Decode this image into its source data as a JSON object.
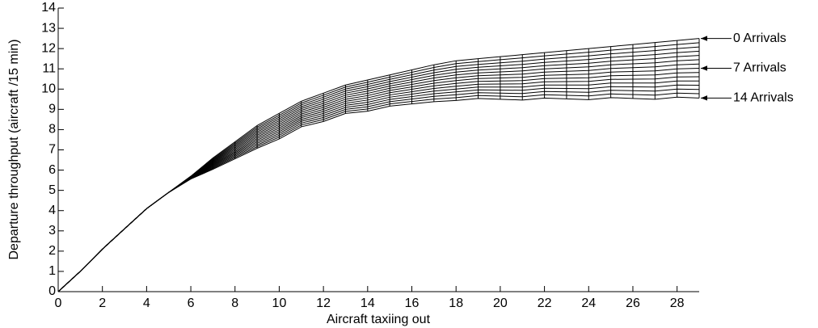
{
  "chart_data": {
    "type": "line",
    "xlabel": "Aircraft taxiing out",
    "ylabel": "Departure throughput (aircraft /15 min)",
    "color": "#000000",
    "x": [
      0,
      1,
      2,
      3,
      4,
      5,
      6,
      7,
      8,
      9,
      10,
      11,
      12,
      13,
      14,
      15,
      16,
      17,
      18,
      19,
      20,
      21,
      22,
      23,
      24,
      25,
      26,
      27,
      28,
      29
    ],
    "series": [
      {
        "name": "0 Arrivals",
        "values": [
          0,
          1,
          2.1,
          3.1,
          4.1,
          4.9,
          5.7,
          6.6,
          7.4,
          8.2,
          8.8,
          9.4,
          9.8,
          10.2,
          10.45,
          10.7,
          10.95,
          11.2,
          11.4,
          11.5,
          11.6,
          11.7,
          11.8,
          11.9,
          12,
          12.1,
          12.2,
          12.3,
          12.4,
          12.5
        ]
      },
      {
        "values": [
          0,
          1,
          2.1,
          3.1,
          4.1,
          4.9,
          5.69,
          6.56,
          7.34,
          8.12,
          8.71,
          9.31,
          9.7,
          10.1,
          10.34,
          10.59,
          10.83,
          11.07,
          11.26,
          11.36,
          11.45,
          11.54,
          11.64,
          11.73,
          11.82,
          11.92,
          12.01,
          12.1,
          12.2,
          12.29
        ]
      },
      {
        "values": [
          0,
          1,
          2.1,
          3.1,
          4.1,
          4.9,
          5.68,
          6.52,
          7.28,
          8.04,
          8.62,
          9.22,
          9.6,
          10,
          10.23,
          10.48,
          10.71,
          10.94,
          11.12,
          11.22,
          11.3,
          11.38,
          11.48,
          11.56,
          11.64,
          11.74,
          11.82,
          11.9,
          12,
          12.08
        ]
      },
      {
        "values": [
          0,
          1,
          2.1,
          3.1,
          4.1,
          4.9,
          5.67,
          6.48,
          7.22,
          7.96,
          8.53,
          9.13,
          9.5,
          9.9,
          10.12,
          10.37,
          10.59,
          10.81,
          10.98,
          11.08,
          11.15,
          11.22,
          11.32,
          11.39,
          11.46,
          11.56,
          11.63,
          11.7,
          11.8,
          11.87
        ]
      },
      {
        "values": [
          0,
          1,
          2.1,
          3.1,
          4.1,
          4.9,
          5.66,
          6.44,
          7.16,
          7.88,
          8.44,
          9.04,
          9.4,
          9.8,
          10.01,
          10.26,
          10.47,
          10.68,
          10.84,
          10.94,
          11,
          11.06,
          11.16,
          11.22,
          11.28,
          11.38,
          11.44,
          11.5,
          11.6,
          11.66
        ]
      },
      {
        "values": [
          0,
          1,
          2.1,
          3.1,
          4.1,
          4.9,
          5.65,
          6.4,
          7.1,
          7.8,
          8.35,
          8.95,
          9.3,
          9.7,
          9.9,
          10.15,
          10.35,
          10.55,
          10.7,
          10.8,
          10.85,
          10.9,
          11,
          11.05,
          11.1,
          11.2,
          11.25,
          11.3,
          11.4,
          11.45
        ]
      },
      {
        "values": [
          0,
          1,
          2.1,
          3.1,
          4.1,
          4.9,
          5.64,
          6.36,
          7.04,
          7.72,
          8.26,
          8.86,
          9.2,
          9.6,
          9.79,
          10.04,
          10.23,
          10.42,
          10.56,
          10.66,
          10.7,
          10.74,
          10.84,
          10.88,
          10.92,
          11.02,
          11.06,
          11.1,
          11.2,
          11.24
        ]
      },
      {
        "name": "7 Arrivals",
        "values": [
          0,
          1,
          2.1,
          3.1,
          4.1,
          4.9,
          5.63,
          6.32,
          6.98,
          7.64,
          8.17,
          8.77,
          9.1,
          9.5,
          9.68,
          9.93,
          10.11,
          10.29,
          10.42,
          10.52,
          10.55,
          10.58,
          10.68,
          10.71,
          10.74,
          10.84,
          10.87,
          10.9,
          11,
          11.03
        ]
      },
      {
        "values": [
          0,
          1,
          2.1,
          3.1,
          4.1,
          4.9,
          5.62,
          6.28,
          6.92,
          7.56,
          8.08,
          8.68,
          9,
          9.4,
          9.57,
          9.82,
          9.99,
          10.16,
          10.28,
          10.38,
          10.4,
          10.42,
          10.52,
          10.54,
          10.56,
          10.66,
          10.68,
          10.7,
          10.8,
          10.82
        ]
      },
      {
        "values": [
          0,
          1,
          2.1,
          3.1,
          4.1,
          4.9,
          5.61,
          6.24,
          6.86,
          7.48,
          7.99,
          8.59,
          8.9,
          9.3,
          9.46,
          9.71,
          9.87,
          10.03,
          10.14,
          10.24,
          10.25,
          10.26,
          10.36,
          10.37,
          10.38,
          10.48,
          10.49,
          10.5,
          10.6,
          10.61
        ]
      },
      {
        "values": [
          0,
          1,
          2.1,
          3.1,
          4.1,
          4.9,
          5.6,
          6.2,
          6.8,
          7.4,
          7.9,
          8.5,
          8.8,
          9.2,
          9.35,
          9.6,
          9.75,
          9.9,
          10,
          10.1,
          10.1,
          10.1,
          10.2,
          10.2,
          10.2,
          10.3,
          10.3,
          10.3,
          10.4,
          10.4
        ]
      },
      {
        "values": [
          0,
          1,
          2.1,
          3.1,
          4.1,
          4.9,
          5.59,
          6.16,
          6.74,
          7.32,
          7.81,
          8.41,
          8.7,
          9.1,
          9.24,
          9.49,
          9.63,
          9.77,
          9.86,
          9.96,
          9.95,
          9.94,
          10.04,
          10.03,
          10.02,
          10.12,
          10.11,
          10.1,
          10.2,
          10.19
        ]
      },
      {
        "values": [
          0,
          1,
          2.1,
          3.1,
          4.1,
          4.9,
          5.58,
          6.12,
          6.68,
          7.24,
          7.72,
          8.32,
          8.6,
          9,
          9.13,
          9.38,
          9.51,
          9.64,
          9.72,
          9.82,
          9.8,
          9.78,
          9.88,
          9.86,
          9.84,
          9.94,
          9.92,
          9.9,
          10,
          9.98
        ]
      },
      {
        "values": [
          0,
          1,
          2.1,
          3.1,
          4.1,
          4.9,
          5.57,
          6.08,
          6.62,
          7.16,
          7.63,
          8.23,
          8.5,
          8.9,
          9.02,
          9.27,
          9.39,
          9.51,
          9.58,
          9.68,
          9.65,
          9.62,
          9.72,
          9.69,
          9.66,
          9.76,
          9.73,
          9.7,
          9.8,
          9.77
        ]
      },
      {
        "name": "14 Arrivals",
        "values": [
          0,
          1,
          2.1,
          3.1,
          4.1,
          4.9,
          5.56,
          6.04,
          6.56,
          7.08,
          7.54,
          8.14,
          8.4,
          8.8,
          8.91,
          9.16,
          9.27,
          9.38,
          9.44,
          9.54,
          9.5,
          9.46,
          9.56,
          9.52,
          9.48,
          9.58,
          9.54,
          9.5,
          9.6,
          9.56
        ]
      }
    ],
    "xlim": [
      0,
      29
    ],
    "xticks": [
      0,
      2,
      4,
      6,
      8,
      10,
      12,
      14,
      16,
      18,
      20,
      22,
      24,
      26,
      28
    ],
    "ylim": [
      0,
      14
    ],
    "yticks": [
      0,
      1,
      2,
      3,
      4,
      5,
      6,
      7,
      8,
      9,
      10,
      11,
      12,
      13,
      14
    ]
  }
}
